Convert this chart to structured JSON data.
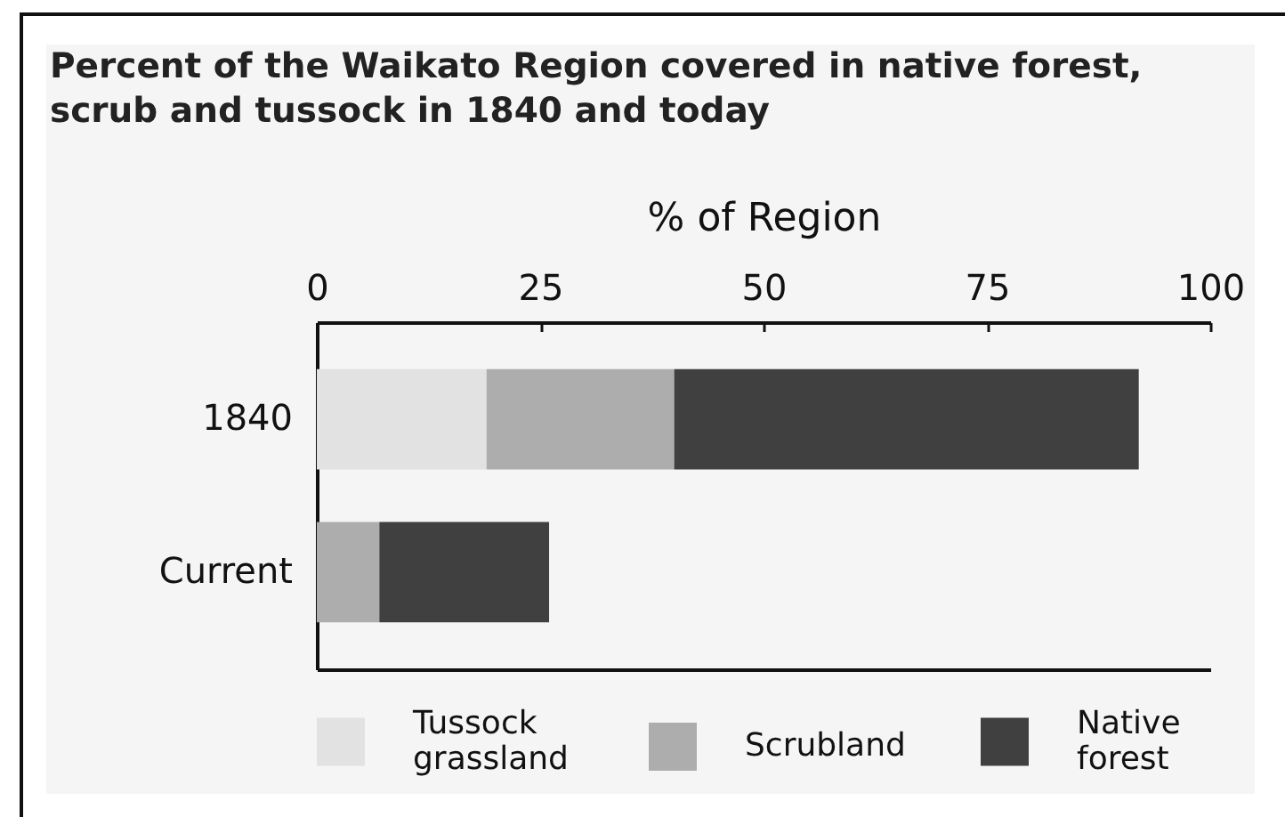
{
  "chart_data": {
    "type": "bar",
    "orientation": "horizontal",
    "stacked": true,
    "title": "Percent of the Waikato Region covered in native forest,\nscrub and tussock in 1840 and today",
    "xlabel": "% of Region",
    "categories": [
      "1840",
      "Current"
    ],
    "series": [
      {
        "name": "Tussock grassland",
        "color": "#e2e2e2",
        "values": [
          19,
          null
        ]
      },
      {
        "name": "Scrubland",
        "color": "#adadad",
        "values": [
          21,
          7
        ]
      },
      {
        "name": "Native forest",
        "color": "#404040",
        "values": [
          52,
          19
        ]
      }
    ],
    "xlim": [
      0,
      100
    ],
    "xticks": [
      0,
      25,
      50,
      75,
      100
    ],
    "legend": "bottom"
  }
}
